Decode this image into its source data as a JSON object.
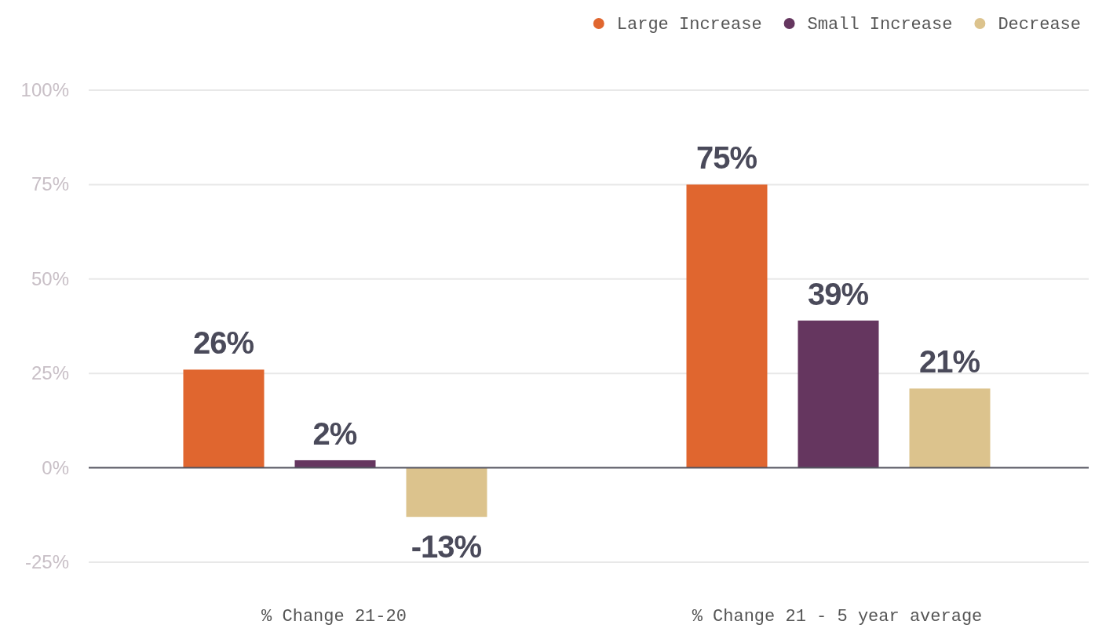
{
  "chart_data": {
    "type": "bar",
    "categories": [
      "% Change 21-20",
      "% Change 21 - 5 year average"
    ],
    "series": [
      {
        "name": "Large Increase",
        "color": "#e0662f",
        "values": [
          26,
          75
        ],
        "value_labels": [
          "26%",
          "75%"
        ]
      },
      {
        "name": "Small Increase",
        "color": "#65365f",
        "values": [
          2,
          39
        ],
        "value_labels": [
          "2%",
          "39%"
        ]
      },
      {
        "name": "Decrease",
        "color": "#dcc38d",
        "values": [
          -13,
          21
        ],
        "value_labels": [
          "-13%",
          "21%"
        ]
      }
    ],
    "ylim": [
      -25,
      100
    ],
    "yticks": [
      {
        "value": -25,
        "label": "-25%"
      },
      {
        "value": 0,
        "label": "0%"
      },
      {
        "value": 25,
        "label": "25%"
      },
      {
        "value": 50,
        "label": "50%"
      },
      {
        "value": 75,
        "label": "75%"
      },
      {
        "value": 100,
        "label": "100%"
      }
    ],
    "grid": "y",
    "legend": "top right"
  }
}
